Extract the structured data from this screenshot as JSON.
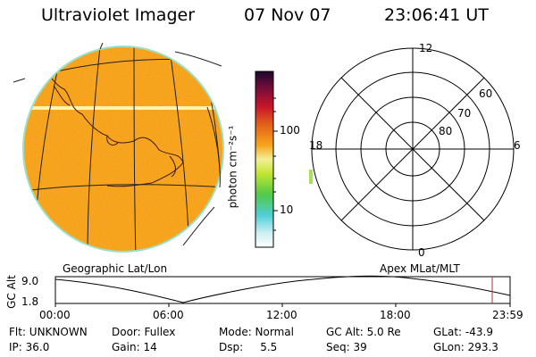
{
  "header": {
    "instrument": "Ultraviolet Imager",
    "date": "07 Nov 07",
    "time": "23:06:41 UT"
  },
  "colorbar": {
    "unit_label": "photon cm⁻²s⁻¹",
    "ticks": [
      "100",
      "10"
    ]
  },
  "polar_plot": {
    "ring_labels": [
      "60",
      "70",
      "80"
    ],
    "mlt_labels": {
      "top": "12",
      "bottom": "0",
      "left": "18",
      "right": "6"
    }
  },
  "captions": {
    "left": "Geographic Lat/Lon",
    "right": "Apex MLat/MLT"
  },
  "altitude_plot": {
    "y_axis_label": "GC Alt",
    "y_ticks": [
      "9.0",
      "1.8"
    ],
    "x_ticks": [
      "00:00",
      "06:00",
      "12:00",
      "18:00",
      "23:59"
    ]
  },
  "metadata": {
    "flt": "Flt: UNKNOWN",
    "ip": "IP: 36.0",
    "door": "Door: Fullex",
    "gain": "Gain: 14",
    "mode": "Mode: Normal",
    "dsp": "Dsp:     5.5",
    "gc_alt": "GC Alt: 5.0 Re",
    "seq": "Seq: 39",
    "glat": "GLat: -43.9",
    "glon": "GLon: 293.3"
  },
  "colors": {
    "image_base": "#f7a51c",
    "image_rim": "#9be0c8",
    "marker": "#b03030"
  }
}
